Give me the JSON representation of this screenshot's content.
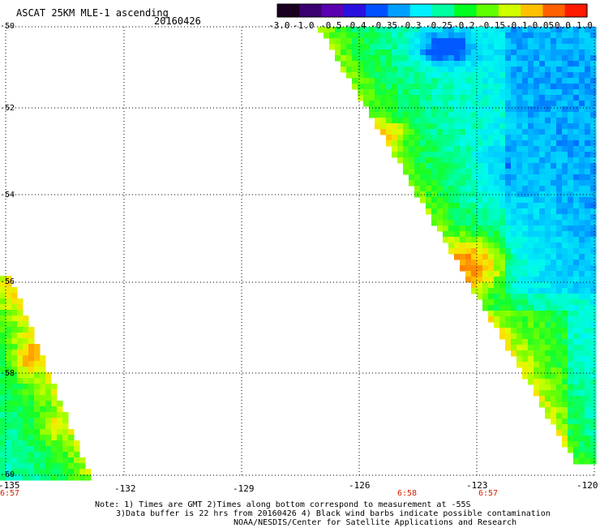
{
  "header": {
    "title": "ASCAT 25KM MLE-1 ascending",
    "date": "20160426"
  },
  "colorbar": {
    "ticks": [
      "-3.0",
      "-1.0",
      "-0.5",
      "-0.4",
      "-0.35",
      "-0.3",
      "-0.25",
      "-0.2",
      "-0.15",
      "-0.1",
      "-0.05",
      "0.0",
      "1.0"
    ],
    "colors": [
      "#1a0020",
      "#3a0070",
      "#5a00b0",
      "#2a10e0",
      "#0050ff",
      "#00a0ff",
      "#00f0ff",
      "#00ffa0",
      "#00ff20",
      "#60ff00",
      "#d0ff00",
      "#ffc000",
      "#ff6000",
      "#ff1800"
    ]
  },
  "map": {
    "lat_labels": [
      "-50",
      "-52",
      "-54",
      "-56",
      "-58",
      "-60"
    ],
    "lon_labels": [
      "-135",
      "-132",
      "-129",
      "-126",
      "-123",
      "-120"
    ],
    "time_labels": [
      "6:57",
      "6:58",
      "6:57"
    ]
  },
  "notes": {
    "line1": "Note: 1) Times are GMT 2)Times along bottom correspond to measurement at -55S",
    "line2": "3)Data buffer is 22 hrs from 20160426 4) Black wind barbs indicate possible contamination",
    "line3": "NOAA/NESDIS/Center for Satellite Applications and Research"
  }
}
